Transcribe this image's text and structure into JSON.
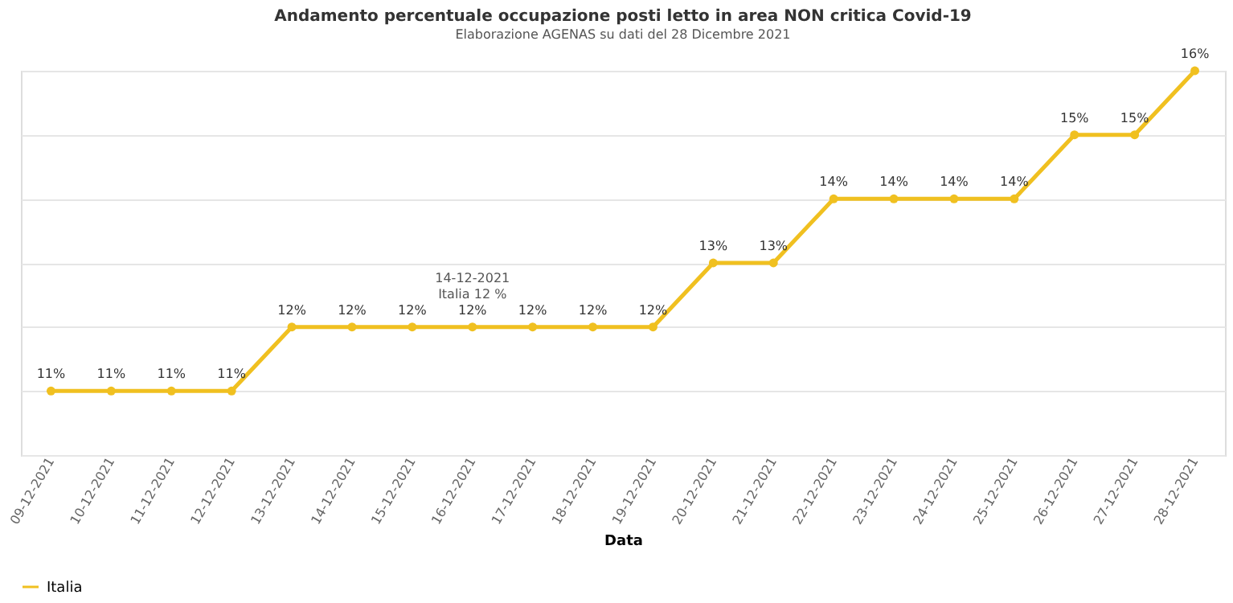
{
  "chart_data": {
    "type": "line",
    "title": "Andamento percentuale occupazione posti letto in area NON critica Covid-19",
    "subtitle": "Elaborazione AGENAS su dati del 28 Dicembre 2021",
    "xlabel": "Data",
    "categories": [
      "09-12-2021",
      "10-12-2021",
      "11-12-2021",
      "12-12-2021",
      "13-12-2021",
      "14-12-2021",
      "15-12-2021",
      "16-12-2021",
      "17-12-2021",
      "18-12-2021",
      "19-12-2021",
      "20-12-2021",
      "21-12-2021",
      "22-12-2021",
      "23-12-2021",
      "24-12-2021",
      "25-12-2021",
      "26-12-2021",
      "27-12-2021",
      "28-12-2021"
    ],
    "series": [
      {
        "name": "Italia",
        "color": "#f0c020",
        "values": [
          11,
          11,
          11,
          11,
          12,
          12,
          12,
          12,
          12,
          12,
          12,
          13,
          13,
          14,
          14,
          14,
          14,
          15,
          15,
          16
        ],
        "value_labels": [
          "11%",
          "11%",
          "11%",
          "11%",
          "12%",
          "12%",
          "12%",
          "12%",
          "12%",
          "12%",
          "12%",
          "13%",
          "13%",
          "14%",
          "14%",
          "14%",
          "14%",
          "15%",
          "15%",
          "16%"
        ]
      }
    ],
    "ylim": [
      10,
      16
    ],
    "yticks": [
      {
        "value": 10,
        "label": null
      },
      {
        "value": 11,
        "label": null
      },
      {
        "value": 12,
        "label": null
      },
      {
        "value": 13,
        "label": null
      },
      {
        "value": 14,
        "label": null
      },
      {
        "value": 15,
        "label": null
      },
      {
        "value": 16,
        "label": null
      }
    ],
    "tick_labels": "x",
    "grid": "y",
    "legend": "bottom",
    "marker": "circle",
    "line_style": "solid",
    "annotations": [
      {
        "text": "14-12-2021\nItalia 12 %",
        "x": "16-12-2021",
        "y": 12
      }
    ]
  }
}
